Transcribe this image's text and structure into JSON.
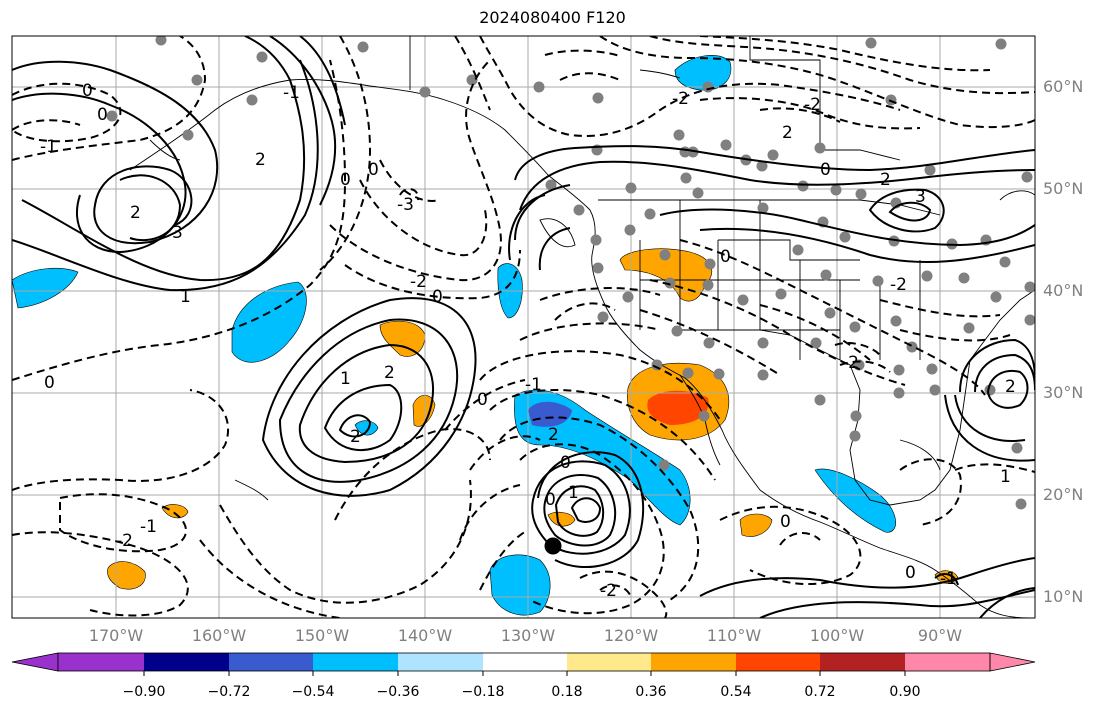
{
  "title": "2024080400 F120",
  "map": {
    "lon_labels": [
      "170°W",
      "160°W",
      "150°W",
      "140°W",
      "130°W",
      "120°W",
      "110°W",
      "100°W",
      "90°W"
    ],
    "lat_labels": [
      "60°N",
      "50°N",
      "40°N",
      "30°N",
      "20°N",
      "10°N"
    ],
    "contour_labels": [
      "0",
      "-1",
      "0",
      "2",
      "3",
      "1",
      "-1",
      "2",
      "-3",
      "-2",
      "0",
      "0",
      "1",
      "2",
      "2",
      "-1",
      "-2",
      "0",
      "-1",
      "0",
      "2",
      "1",
      "0",
      "-2",
      "-2",
      "2",
      "-2",
      "0",
      "2",
      "3",
      "0",
      "-2",
      "-2",
      "0",
      "2",
      "0",
      "-1",
      "1",
      "0",
      "0",
      "1"
    ]
  },
  "colorbar": {
    "ticks": [
      "−0.90",
      "−0.72",
      "−0.54",
      "−0.36",
      "−0.18",
      "0.18",
      "0.36",
      "0.54",
      "0.72",
      "0.90"
    ],
    "colors": [
      "#9932cc",
      "#00008b",
      "#3a5bd0",
      "#00bfff",
      "#aee4ff",
      "#ffffff",
      "#ffe98a",
      "#ffa500",
      "#ff4500",
      "#b22222",
      "#ff88aa"
    ]
  },
  "icons": {
    "tc-marker": "black-dot"
  }
}
